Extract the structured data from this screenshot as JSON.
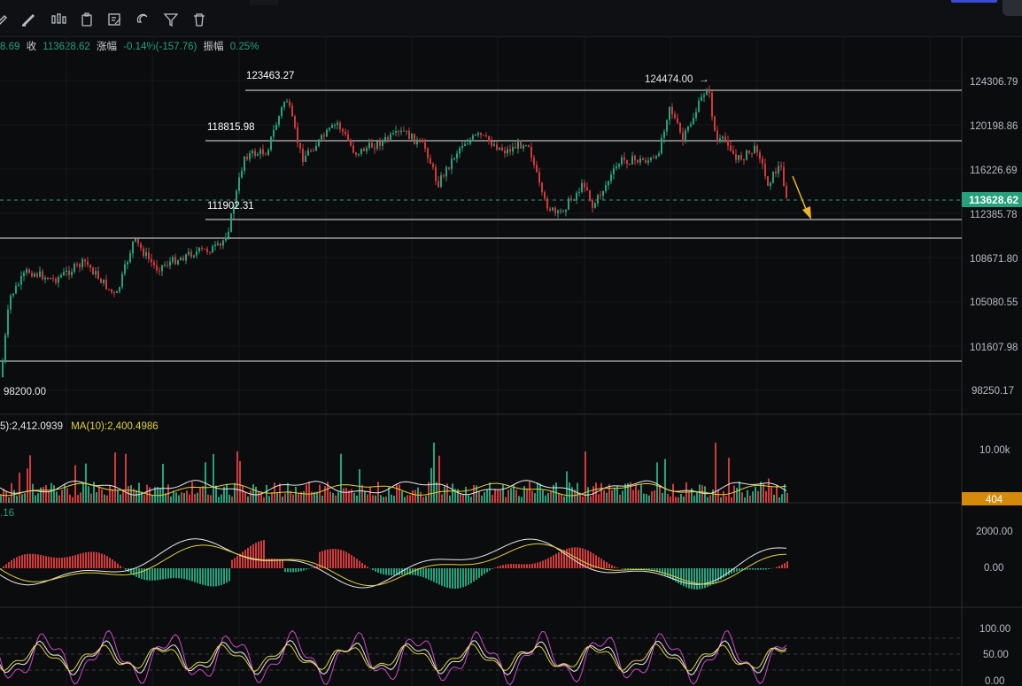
{
  "toolbar": {
    "tools": [
      "pencil-icon",
      "brush-icon",
      "candles-icon",
      "clipboard-icon",
      "edit-note-icon",
      "magnet-icon",
      "filter-icon",
      "trash-icon"
    ]
  },
  "ohlc": {
    "prefix": "8.69",
    "close_label": "收",
    "close_value": "113628.62",
    "change_label": "涨幅",
    "change_value": "-0.14%(-157.76)",
    "amp_label": "振幅",
    "amp_value": "0.25%"
  },
  "price_axis": {
    "ticks": [
      "124306.79",
      "120198.86",
      "116226.69",
      "112385.78",
      "108671.80",
      "105080.55",
      "101607.98",
      "98250.17"
    ],
    "current_price": "113628.62",
    "current_color": "#26a17b"
  },
  "levels": {
    "high1": "123463.27",
    "high2": "124474.00",
    "mid": "118815.98",
    "low": "111902.31",
    "bottom": "98200.00"
  },
  "volume": {
    "legend_ma5": "5):2,412.0939",
    "legend_ma10": "MA(10):2,400.4986",
    "axis_top": "10.00k",
    "current": "404",
    "current_color": "#d68a0c"
  },
  "macd": {
    "legend": ".16",
    "ticks": [
      "2000.00",
      "0.00"
    ]
  },
  "kdj": {
    "ticks": [
      "100.00",
      "50.00",
      "0.00"
    ]
  },
  "colors": {
    "up": "#26a17b",
    "down": "#d03a3a",
    "ma_white": "#e8e8e8",
    "ma_yellow": "#e3d23a",
    "k_pink": "#d048c8",
    "arrow": "#f0b429"
  }
}
